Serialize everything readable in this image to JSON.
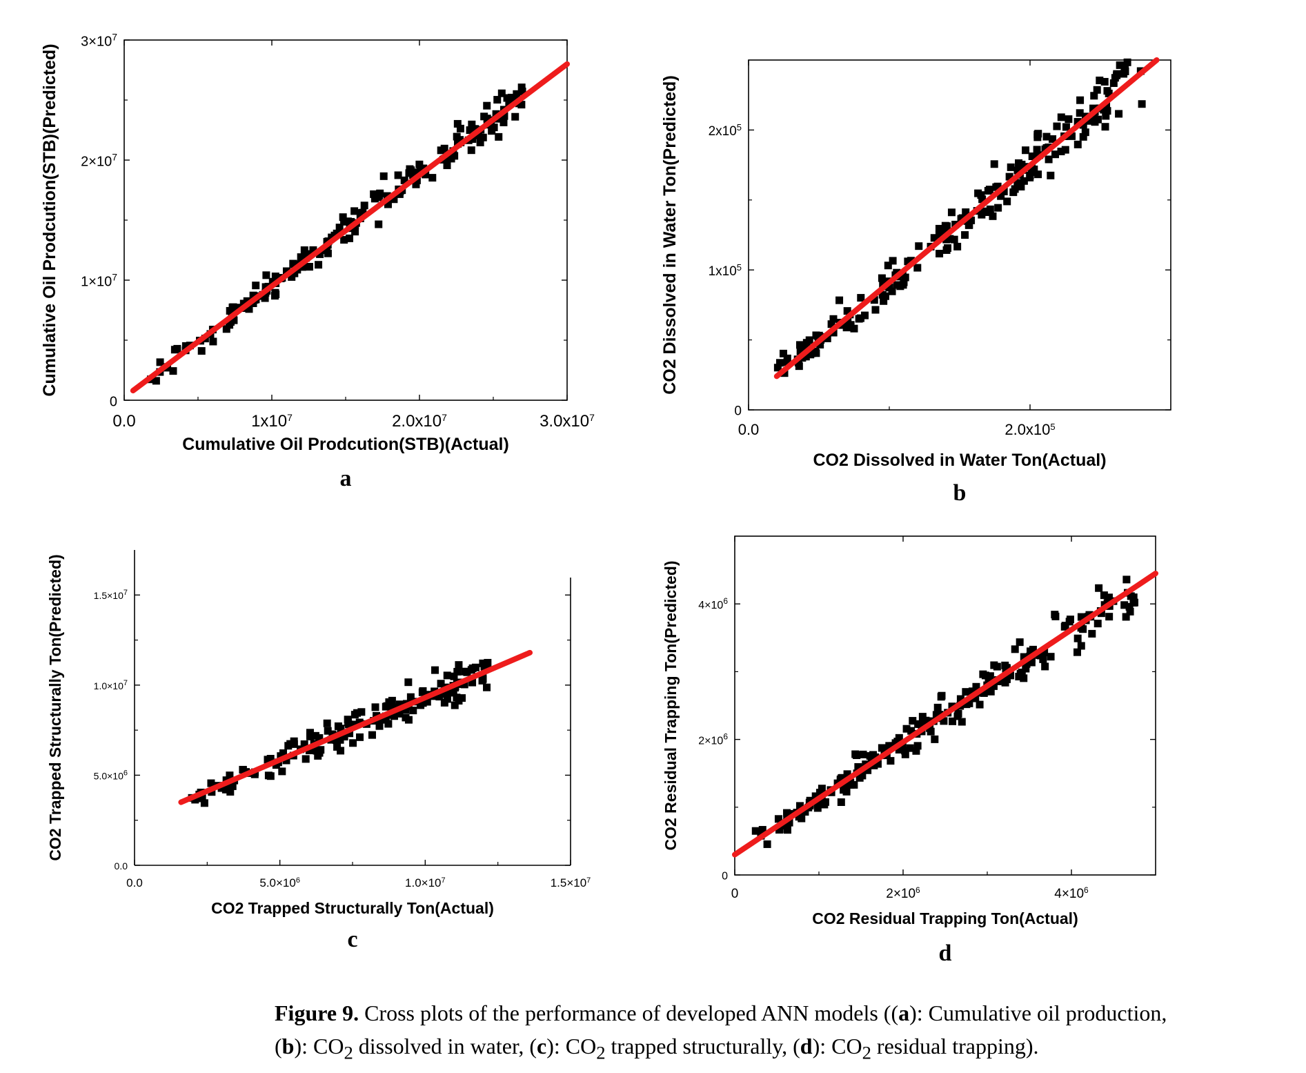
{
  "figure": {
    "caption_label": "Figure 9.",
    "caption_text": " Cross plots of the performance of developed ANN models ((",
    "caption_parts": [
      {
        "letter": "a",
        "text": "): Cumulative oil production,"
      },
      {
        "letter": "b",
        "text": "): CO",
        "sub": "2",
        "tail": " dissolved in water, ("
      },
      {
        "letter": "c",
        "text": "): CO",
        "sub": "2",
        "tail": " trapped structurally, ("
      },
      {
        "letter": "d",
        "text": "): CO",
        "sub": "2",
        "tail": " residual trapping)."
      }
    ]
  },
  "colors": {
    "marker": "#000000",
    "fit_line": "#ee1c1c",
    "axis": "#000000"
  },
  "chart_data": [
    {
      "id": "a",
      "type": "scatter",
      "panel_label": "a",
      "xlabel": "Cumulative Oil Prodcution(STB)(Actual)",
      "ylabel": "Cumulative Oil Prodcution(STB)(Predicted)",
      "xlim": [
        0,
        30000000
      ],
      "ylim": [
        0,
        30000000
      ],
      "xticks": [
        {
          "v": 0,
          "t": "0.0"
        },
        {
          "v": 10000000,
          "t": "1x10",
          "e": "7"
        },
        {
          "v": 20000000,
          "t": "2.0x10",
          "e": "7"
        },
        {
          "v": 30000000,
          "t": "3.0x10",
          "e": "7"
        }
      ],
      "yticks": [
        {
          "v": 0,
          "t": "0"
        },
        {
          "v": 10000000,
          "t": "1×10",
          "e": "7"
        },
        {
          "v": 20000000,
          "t": "2×10",
          "e": "7"
        },
        {
          "v": 30000000,
          "t": "3×10",
          "e": "7"
        }
      ],
      "fit_line": {
        "x": [
          600000,
          30000000
        ],
        "y": [
          800000,
          28000000
        ]
      },
      "n_points": 190,
      "x_range": [
        600000,
        27000000
      ],
      "slope": 0.925,
      "intercept": 300000,
      "scatter": 900000,
      "seed": 11
    },
    {
      "id": "b",
      "type": "scatter",
      "panel_label": "b",
      "xlabel": "CO2 Dissolved in Water Ton(Actual)",
      "ylabel": "CO2 Dissolved in Water Ton(Predicted)",
      "xlim": [
        0,
        300000
      ],
      "ylim": [
        0,
        250000
      ],
      "xticks": [
        {
          "v": 0,
          "t": "0.0"
        },
        {
          "v": 200000,
          "t": "2.0x10",
          "e": "5"
        }
      ],
      "yticks": [
        {
          "v": 0,
          "t": "0"
        },
        {
          "v": 100000,
          "t": "1x10",
          "e": "5"
        },
        {
          "v": 200000,
          "t": "2x10",
          "e": "5"
        }
      ],
      "fit_line": {
        "x": [
          20000,
          290000
        ],
        "y": [
          24000,
          250000
        ]
      },
      "n_points": 200,
      "x_range": [
        20000,
        280000
      ],
      "slope": 0.84,
      "intercept": 7000,
      "scatter": 12000,
      "seed": 23
    },
    {
      "id": "c",
      "type": "scatter",
      "panel_label": "c",
      "xlabel": "CO2 Trapped Structurally Ton(Actual)",
      "ylabel": "CO2 Trapped Structurally Ton(Predicted)",
      "xlim": [
        0,
        15000000
      ],
      "ylim": [
        0,
        17500000
      ],
      "xticks": [
        {
          "v": 0,
          "t": "0.0"
        },
        {
          "v": 5000000,
          "t": "5.0×10",
          "e": "6"
        },
        {
          "v": 10000000,
          "t": "1.0×10",
          "e": "7"
        },
        {
          "v": 15000000,
          "t": "1.5×10",
          "e": "7"
        }
      ],
      "yticks": [
        {
          "v": 0,
          "t": "0.0"
        },
        {
          "v": 5000000,
          "t": "5.0×10",
          "e": "6"
        },
        {
          "v": 10000000,
          "t": "1.0×10",
          "e": "7"
        },
        {
          "v": 15000000,
          "t": "1.5×10",
          "e": "7"
        }
      ],
      "fit_line": {
        "x": [
          1600000,
          13600000
        ],
        "y": [
          3500000,
          11800000
        ]
      },
      "n_points": 170,
      "x_range": [
        1900000,
        12200000
      ],
      "slope": 0.69,
      "intercept": 2400000,
      "scatter": 600000,
      "seed": 37
    },
    {
      "id": "d",
      "type": "scatter",
      "panel_label": "d",
      "xlabel": "CO2 Residual Trapping Ton(Actual)",
      "ylabel": "CO2 Residual Trapping Ton(Predicted)",
      "xlim": [
        0,
        5000000
      ],
      "ylim": [
        0,
        5000000
      ],
      "xticks": [
        {
          "v": 0,
          "t": "0"
        },
        {
          "v": 2000000,
          "t": "2×10",
          "e": "6"
        },
        {
          "v": 4000000,
          "t": "4×10",
          "e": "6"
        }
      ],
      "yticks": [
        {
          "v": 0,
          "t": "0"
        },
        {
          "v": 2000000,
          "t": "2×10",
          "e": "6"
        },
        {
          "v": 4000000,
          "t": "4×10",
          "e": "6"
        }
      ],
      "fit_line": {
        "x": [
          0,
          5000000
        ],
        "y": [
          300000,
          4450000
        ]
      },
      "n_points": 210,
      "x_range": [
        30000,
        4750000
      ],
      "slope": 0.83,
      "intercept": 300000,
      "scatter": 190000,
      "seed": 53
    }
  ]
}
